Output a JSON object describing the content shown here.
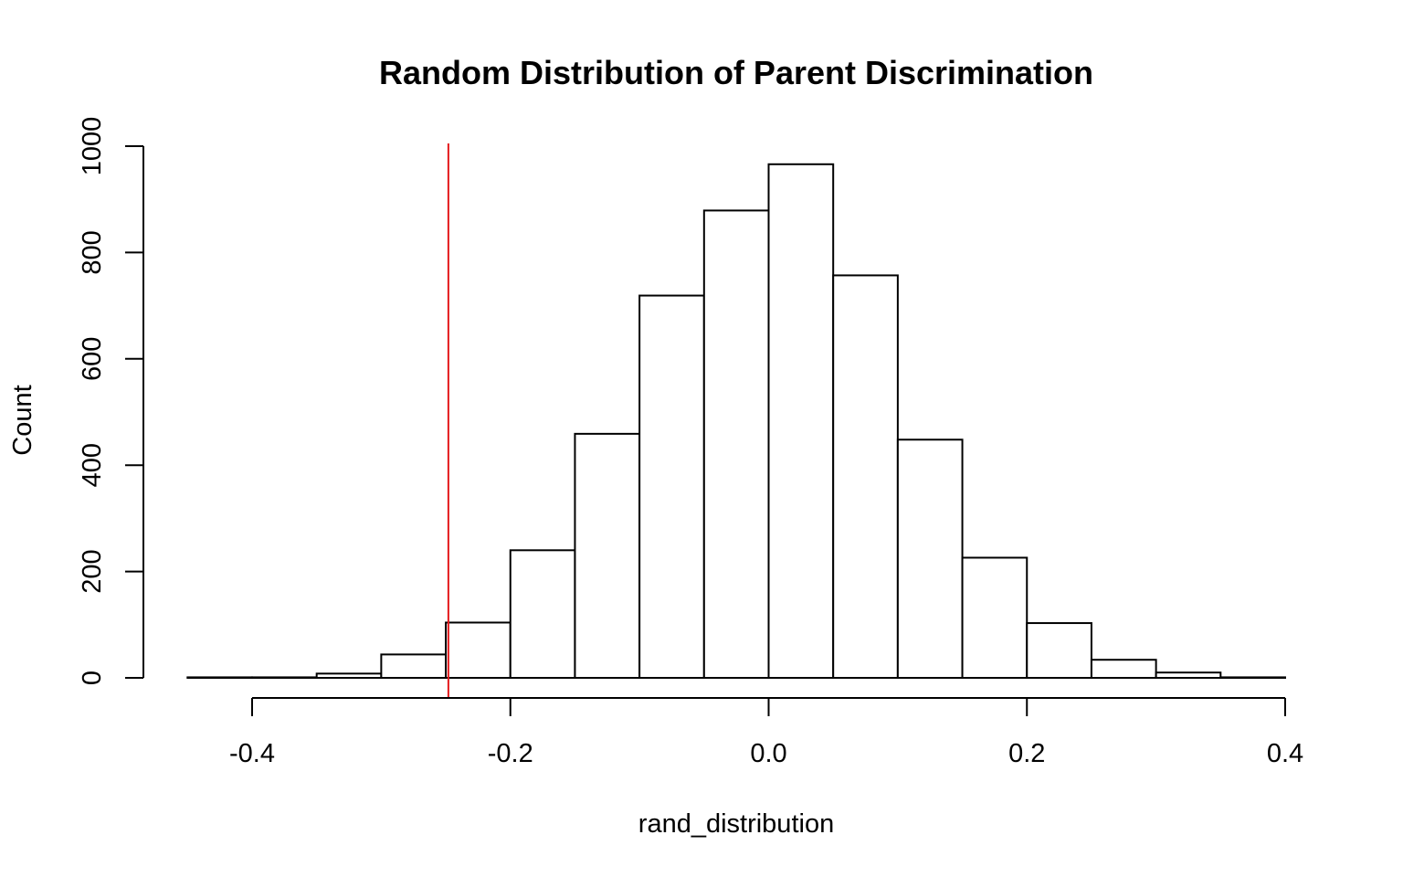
{
  "chart_data": {
    "type": "histogram",
    "title": "Random Distribution of Parent Discrimination",
    "xlabel": "rand_distribution",
    "ylabel": "Count",
    "bins": [
      {
        "x0": -0.45,
        "x1": -0.4,
        "count": 1
      },
      {
        "x0": -0.4,
        "x1": -0.35,
        "count": 1
      },
      {
        "x0": -0.35,
        "x1": -0.3,
        "count": 8
      },
      {
        "x0": -0.3,
        "x1": -0.25,
        "count": 44
      },
      {
        "x0": -0.25,
        "x1": -0.2,
        "count": 104
      },
      {
        "x0": -0.2,
        "x1": -0.15,
        "count": 240
      },
      {
        "x0": -0.15,
        "x1": -0.1,
        "count": 459
      },
      {
        "x0": -0.1,
        "x1": -0.05,
        "count": 719
      },
      {
        "x0": -0.05,
        "x1": 0.0,
        "count": 879
      },
      {
        "x0": 0.0,
        "x1": 0.05,
        "count": 966
      },
      {
        "x0": 0.05,
        "x1": 0.1,
        "count": 757
      },
      {
        "x0": 0.1,
        "x1": 0.15,
        "count": 448
      },
      {
        "x0": 0.15,
        "x1": 0.2,
        "count": 226
      },
      {
        "x0": 0.2,
        "x1": 0.25,
        "count": 103
      },
      {
        "x0": 0.25,
        "x1": 0.3,
        "count": 34
      },
      {
        "x0": 0.3,
        "x1": 0.35,
        "count": 10
      },
      {
        "x0": 0.35,
        "x1": 0.4,
        "count": 1
      }
    ],
    "x_ticks": [
      -0.4,
      -0.2,
      0.0,
      0.2,
      0.4
    ],
    "x_tick_labels": [
      "-0.4",
      "-0.2",
      "0.0",
      "0.2",
      "0.4"
    ],
    "y_ticks": [
      0,
      200,
      400,
      600,
      800,
      1000
    ],
    "y_tick_labels": [
      "0",
      "200",
      "400",
      "600",
      "800",
      "1000"
    ],
    "xlim": [
      -0.45,
      0.4
    ],
    "ylim": [
      0,
      1000
    ],
    "reference_line": {
      "x": -0.248,
      "color": "#e41a1c"
    },
    "bar_fill": "#ffffff",
    "bar_stroke": "#000000",
    "grid": false,
    "legend": "none"
  }
}
